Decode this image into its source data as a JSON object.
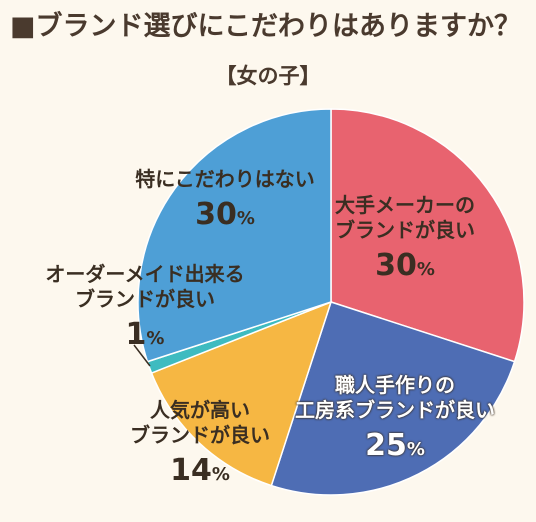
{
  "header": {
    "title": "■ブランド選びにこだわりはありますか？",
    "subtitle": "【女の子】"
  },
  "chart_data": {
    "type": "pie",
    "title": "■ブランド選びにこだわりはありますか？",
    "subtitle": "【女の子】",
    "percent_suffix": "%",
    "slices": [
      {
        "label": "大手メーカーのブランドが良い",
        "lines": [
          "大手メーカーの",
          "ブランドが良い"
        ],
        "value": 30,
        "color": "#E8636F"
      },
      {
        "label": "職人手作りの工房系ブランドが良い",
        "lines": [
          "職人手作りの",
          "工房系ブランドが良い"
        ],
        "value": 25,
        "color": "#4E6DB4"
      },
      {
        "label": "人気が高いブランドが良い",
        "lines": [
          "人気が高い",
          "ブランドが良い"
        ],
        "value": 14,
        "color": "#F6B743"
      },
      {
        "label": "オーダーメイド出来るブランドが良い",
        "lines": [
          "オーダーメイド出来る",
          "ブランドが良い"
        ],
        "value": 1,
        "color": "#3EBBC0"
      },
      {
        "label": "特にこだわりはない",
        "lines": [
          "特にこだわりはない"
        ],
        "value": 30,
        "color": "#4E9FD6"
      }
    ]
  }
}
